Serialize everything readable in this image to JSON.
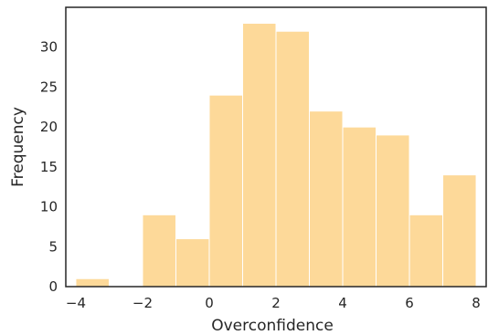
{
  "chart_data": {
    "type": "bar",
    "title": "",
    "xlabel": "Overconfidence",
    "ylabel": "Frequency",
    "xlim": [
      -4.3,
      8.3
    ],
    "ylim": [
      0,
      35
    ],
    "grid": false,
    "bar_color": "#fdd999",
    "bar_edge_color": "#ffffff",
    "axis_color": "#262626",
    "bins": [
      {
        "x0": -4,
        "x1": -3,
        "count": 1
      },
      {
        "x0": -3,
        "x1": -2,
        "count": 0
      },
      {
        "x0": -2,
        "x1": -1,
        "count": 9
      },
      {
        "x0": -1,
        "x1": 0,
        "count": 6
      },
      {
        "x0": 0,
        "x1": 1,
        "count": 24
      },
      {
        "x0": 1,
        "x1": 2,
        "count": 33
      },
      {
        "x0": 2,
        "x1": 3,
        "count": 32
      },
      {
        "x0": 3,
        "x1": 4,
        "count": 22
      },
      {
        "x0": 4,
        "x1": 5,
        "count": 20
      },
      {
        "x0": 5,
        "x1": 6,
        "count": 19
      },
      {
        "x0": 6,
        "x1": 7,
        "count": 9
      },
      {
        "x0": 7,
        "x1": 8,
        "count": 14
      }
    ],
    "xticks": [
      {
        "value": -4,
        "label": "−4"
      },
      {
        "value": -2,
        "label": "−2"
      },
      {
        "value": 0,
        "label": "0"
      },
      {
        "value": 2,
        "label": "2"
      },
      {
        "value": 4,
        "label": "4"
      },
      {
        "value": 6,
        "label": "6"
      },
      {
        "value": 8,
        "label": "8"
      }
    ],
    "yticks": [
      {
        "value": 0,
        "label": "0"
      },
      {
        "value": 5,
        "label": "5"
      },
      {
        "value": 10,
        "label": "10"
      },
      {
        "value": 15,
        "label": "15"
      },
      {
        "value": 20,
        "label": "20"
      },
      {
        "value": 25,
        "label": "25"
      },
      {
        "value": 30,
        "label": "30"
      }
    ]
  }
}
